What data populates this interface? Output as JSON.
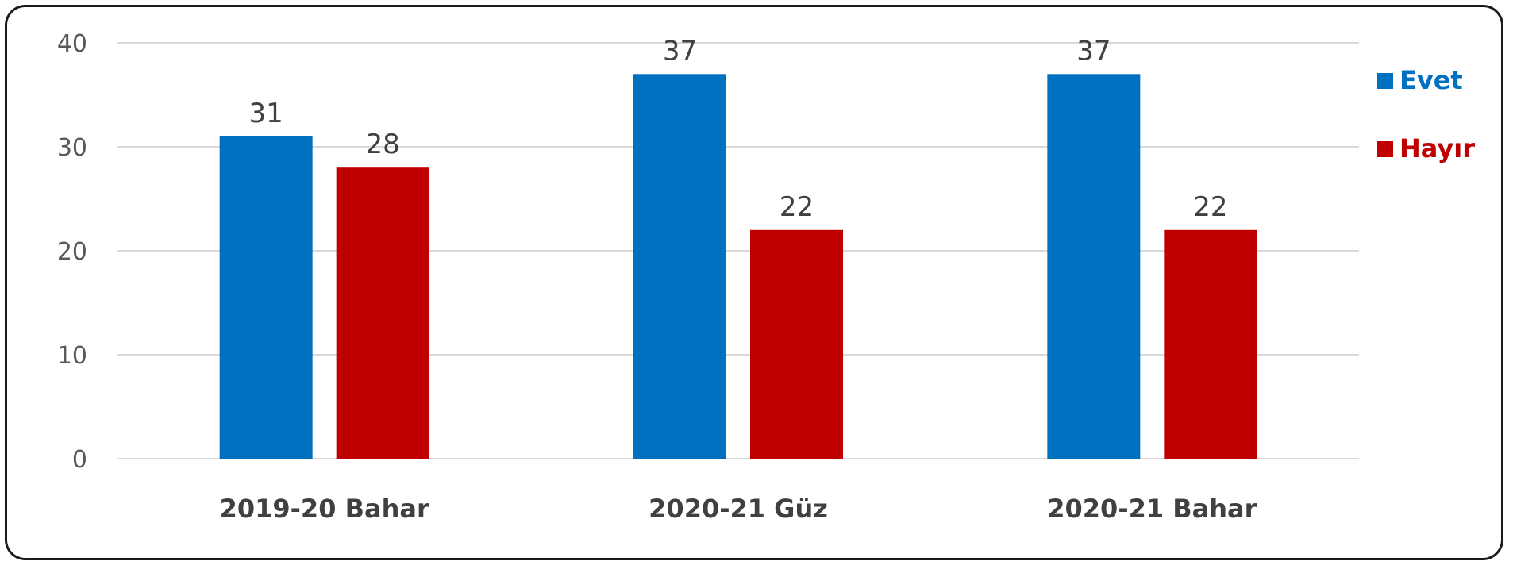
{
  "chart_data": {
    "type": "bar",
    "categories": [
      "2019-20 Bahar",
      "2020-21 Güz",
      "2020-21 Bahar"
    ],
    "series": [
      {
        "name": "Evet",
        "values": [
          31,
          37,
          37
        ],
        "color": "#0070C0"
      },
      {
        "name": "Hayır",
        "values": [
          28,
          22,
          22
        ],
        "color": "#C00000"
      }
    ],
    "yticks": [
      "0",
      "10",
      "20",
      "30",
      "40"
    ],
    "ylim": [
      0,
      40
    ],
    "data_labels": true,
    "grid": "horizontal",
    "legend_position": "right",
    "title": "",
    "xlabel": "",
    "ylabel": ""
  }
}
